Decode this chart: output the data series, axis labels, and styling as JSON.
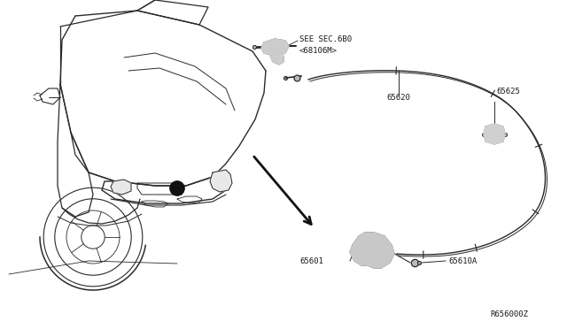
{
  "bg_color": "#ffffff",
  "line_color": "#2a2a2a",
  "label_color": "#1a1a1a",
  "fig_width": 6.4,
  "fig_height": 3.72,
  "dpi": 100,
  "labels": {
    "see_sec": "SEE SEC.6B0\n<68106M>",
    "part_65620": "65620",
    "part_65625": "65625",
    "part_65601": "65601",
    "part_65610A": "65610A",
    "ref_code": "R656000Z"
  },
  "font_size": 6.5,
  "font_family": "monospace"
}
